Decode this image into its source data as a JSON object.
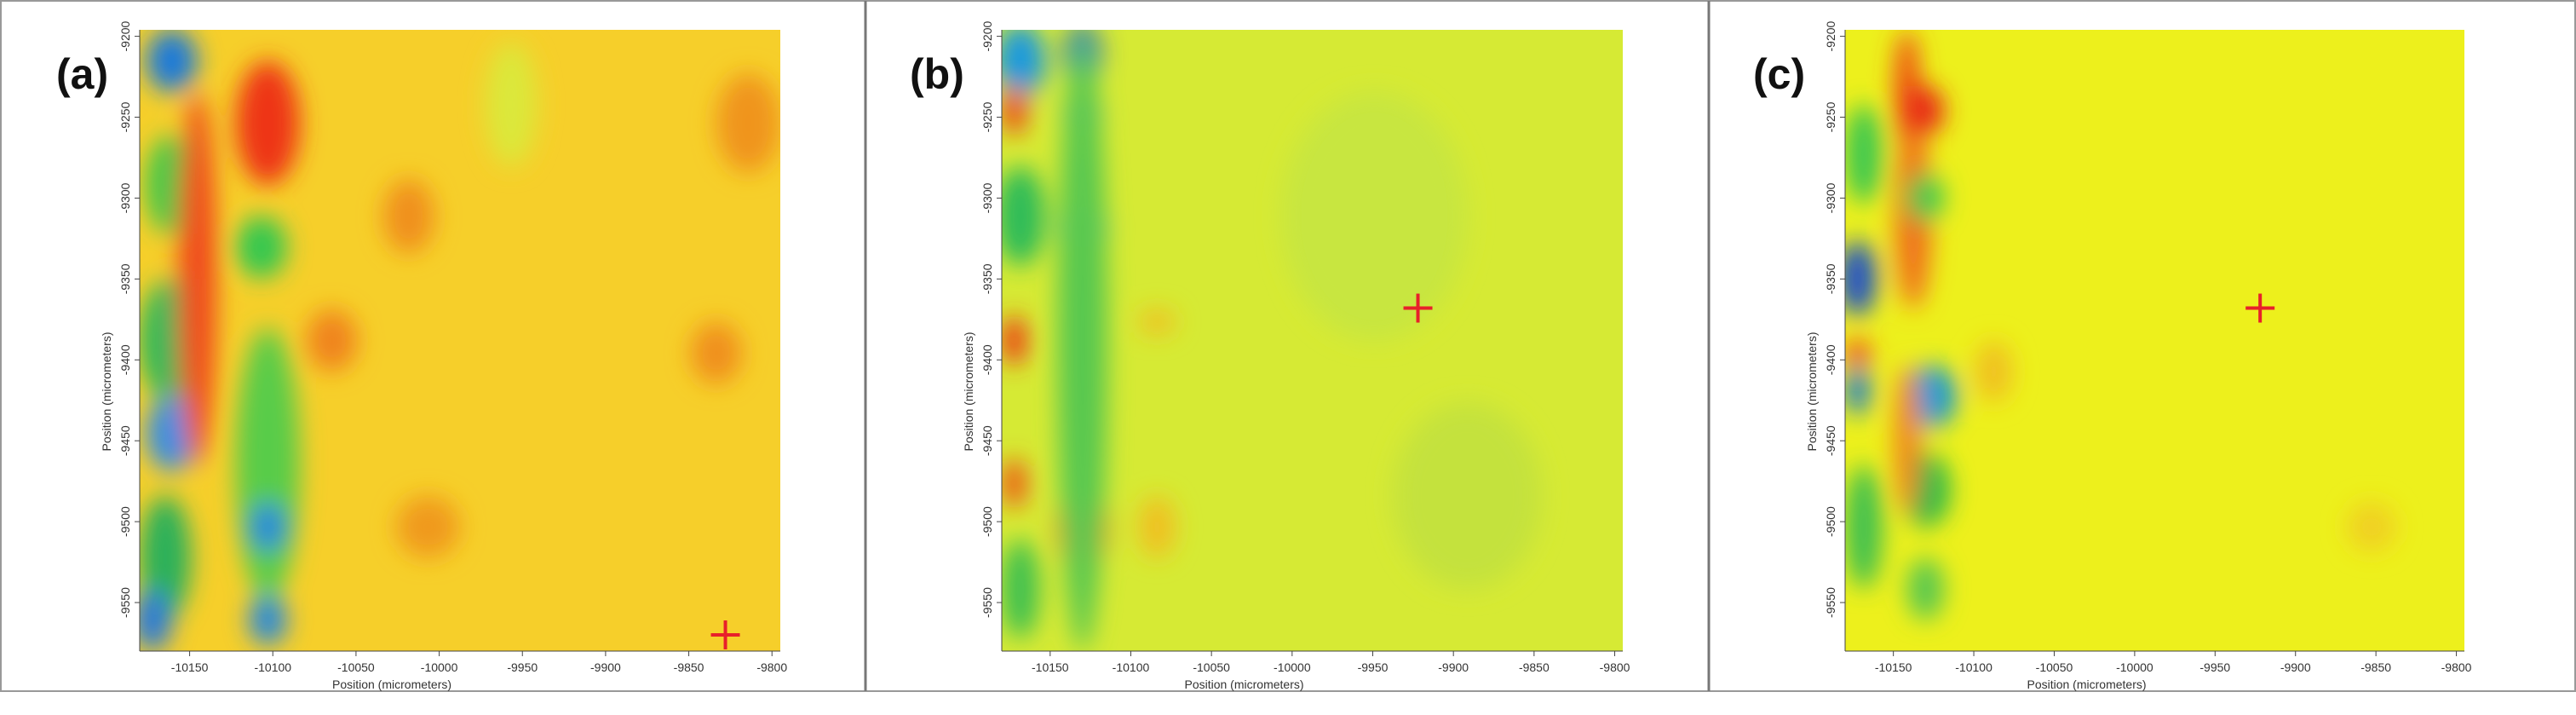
{
  "chart_data": [
    {
      "type": "heatmap",
      "panel_label": "(a)",
      "xlabel": "Position (micrometers)",
      "ylabel": "Position (micrometers)",
      "xlim": [
        -10180,
        -9795
      ],
      "ylim": [
        -9580,
        -9196
      ],
      "xticks": [
        -10150,
        -10100,
        -10050,
        -10000,
        -9950,
        -9900,
        -9850,
        -9800
      ],
      "yticks": [
        -9200,
        -9250,
        -9300,
        -9350,
        -9400,
        -9450,
        -9500,
        -9550
      ],
      "marker": {
        "x": -9828,
        "y": -9570,
        "color": "#e8202a"
      }
    },
    {
      "type": "heatmap",
      "panel_label": "(b)",
      "xlabel": "Position (micrometers)",
      "ylabel": "Position (micrometers)",
      "xlim": [
        -10180,
        -9795
      ],
      "ylim": [
        -9580,
        -9196
      ],
      "xticks": [
        -10150,
        -10100,
        -10050,
        -10000,
        -9950,
        -9900,
        -9850,
        -9800
      ],
      "yticks": [
        -9200,
        -9250,
        -9300,
        -9350,
        -9400,
        -9450,
        -9500,
        -9550
      ],
      "marker": {
        "x": -9922,
        "y": -9368,
        "color": "#e8202a"
      }
    },
    {
      "type": "heatmap",
      "panel_label": "(c)",
      "xlabel": "Position (micrometers)",
      "ylabel": "Position (micrometers)",
      "xlim": [
        -10180,
        -9795
      ],
      "ylim": [
        -9580,
        -9196
      ],
      "xticks": [
        -10150,
        -10100,
        -10050,
        -10000,
        -9950,
        -9900,
        -9850,
        -9800
      ],
      "yticks": [
        -9200,
        -9250,
        -9300,
        -9350,
        -9400,
        -9450,
        -9500,
        -9550
      ],
      "marker": {
        "x": -9922,
        "y": -9368,
        "color": "#e8202a"
      }
    }
  ]
}
